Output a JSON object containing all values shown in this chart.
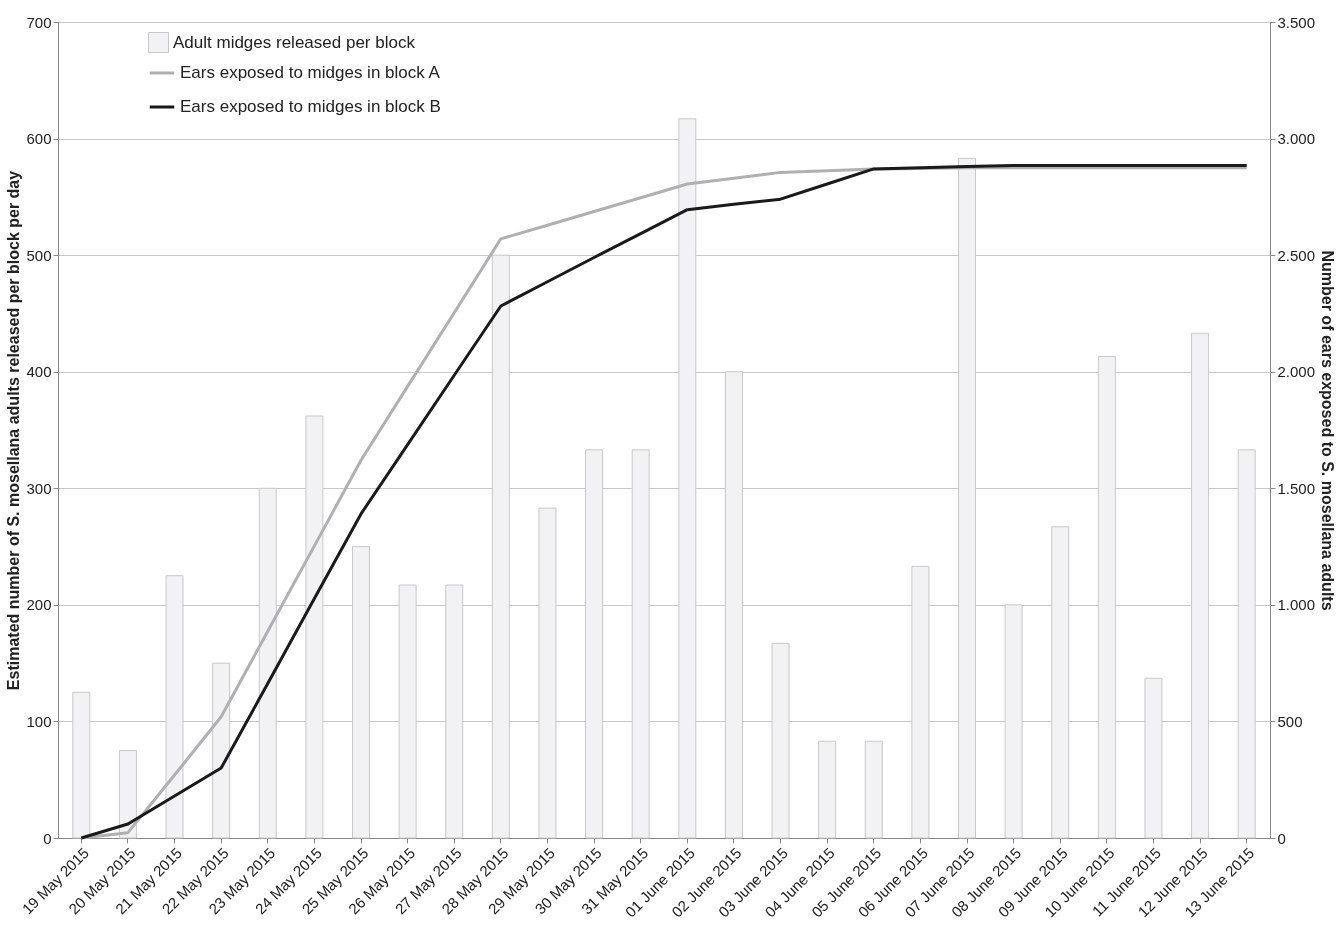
{
  "chart_data": {
    "type": "bar",
    "ylabel": "Estimated number of S. mosellana adults released per block per day",
    "y2label": "Number of ears exposed to S. mosellana adults",
    "categories": [
      "19 May 2015",
      "20 May 2015",
      "21 May 2015",
      "22 May 2015",
      "23 May 2015",
      "24 May 2015",
      "25 May 2015",
      "26 May 2015",
      "27 May 2015",
      "28 May 2015",
      "29 May 2015",
      "30 May 2015",
      "31 May 2015",
      "01 June 2015",
      "02 June 2015",
      "03 June 2015",
      "04 June 2015",
      "05 June 2015",
      "06 June 2015",
      "07 June 2015",
      "08 June 2015",
      "09 June 2015",
      "10 June 2015",
      "11 June 2015",
      "12 June 2015",
      "13 June 2015"
    ],
    "series": [
      {
        "name": "Adult midges released per block",
        "color": "#f2f2f4",
        "values": [
          125,
          75,
          225,
          150,
          300,
          362,
          250,
          217,
          217,
          500,
          283,
          333,
          333,
          617,
          400,
          167,
          83,
          83,
          233,
          583,
          200,
          267,
          413,
          137,
          433,
          333
        ]
      },
      {
        "name": "Ears exposed to midges in block A",
        "type": "line",
        "axis": "y2",
        "color": "#b0b0b4",
        "values": [
          0,
          23,
          270,
          520,
          887,
          1253,
          1620,
          1937,
          2253,
          2570,
          2628,
          2687,
          2746,
          2805,
          2830,
          2855,
          2862,
          2870,
          2872,
          2875,
          2875,
          2875,
          2875,
          2875,
          2875,
          2875
        ]
      },
      {
        "name": "Ears exposed to midges in block B",
        "type": "line",
        "axis": "y2",
        "color": "#1a1a1a",
        "values": [
          0,
          60,
          180,
          300,
          663,
          1027,
          1390,
          1687,
          1985,
          2282,
          2386,
          2490,
          2592,
          2695,
          2718,
          2740,
          2805,
          2870,
          2875,
          2880,
          2885,
          2885,
          2885,
          2885,
          2885,
          2885
        ]
      }
    ],
    "ylim": [
      0,
      700
    ],
    "yticks": [
      0,
      100,
      200,
      300,
      400,
      500,
      600,
      700
    ],
    "y2lim": [
      0,
      3500
    ],
    "y2ticks": [
      0,
      {
        "value": 500,
        "label": "500"
      },
      {
        "value": 1000,
        "label": "1.000"
      },
      {
        "value": 1500,
        "label": "1.500"
      },
      {
        "value": 2000,
        "label": "2.000"
      },
      {
        "value": 2500,
        "label": "2.500"
      },
      {
        "value": 3000,
        "label": "3.000"
      },
      {
        "value": 3500,
        "label": "3.500"
      }
    ],
    "grid": "y",
    "legend": "top left",
    "line_style": "solid",
    "marker": "none"
  }
}
